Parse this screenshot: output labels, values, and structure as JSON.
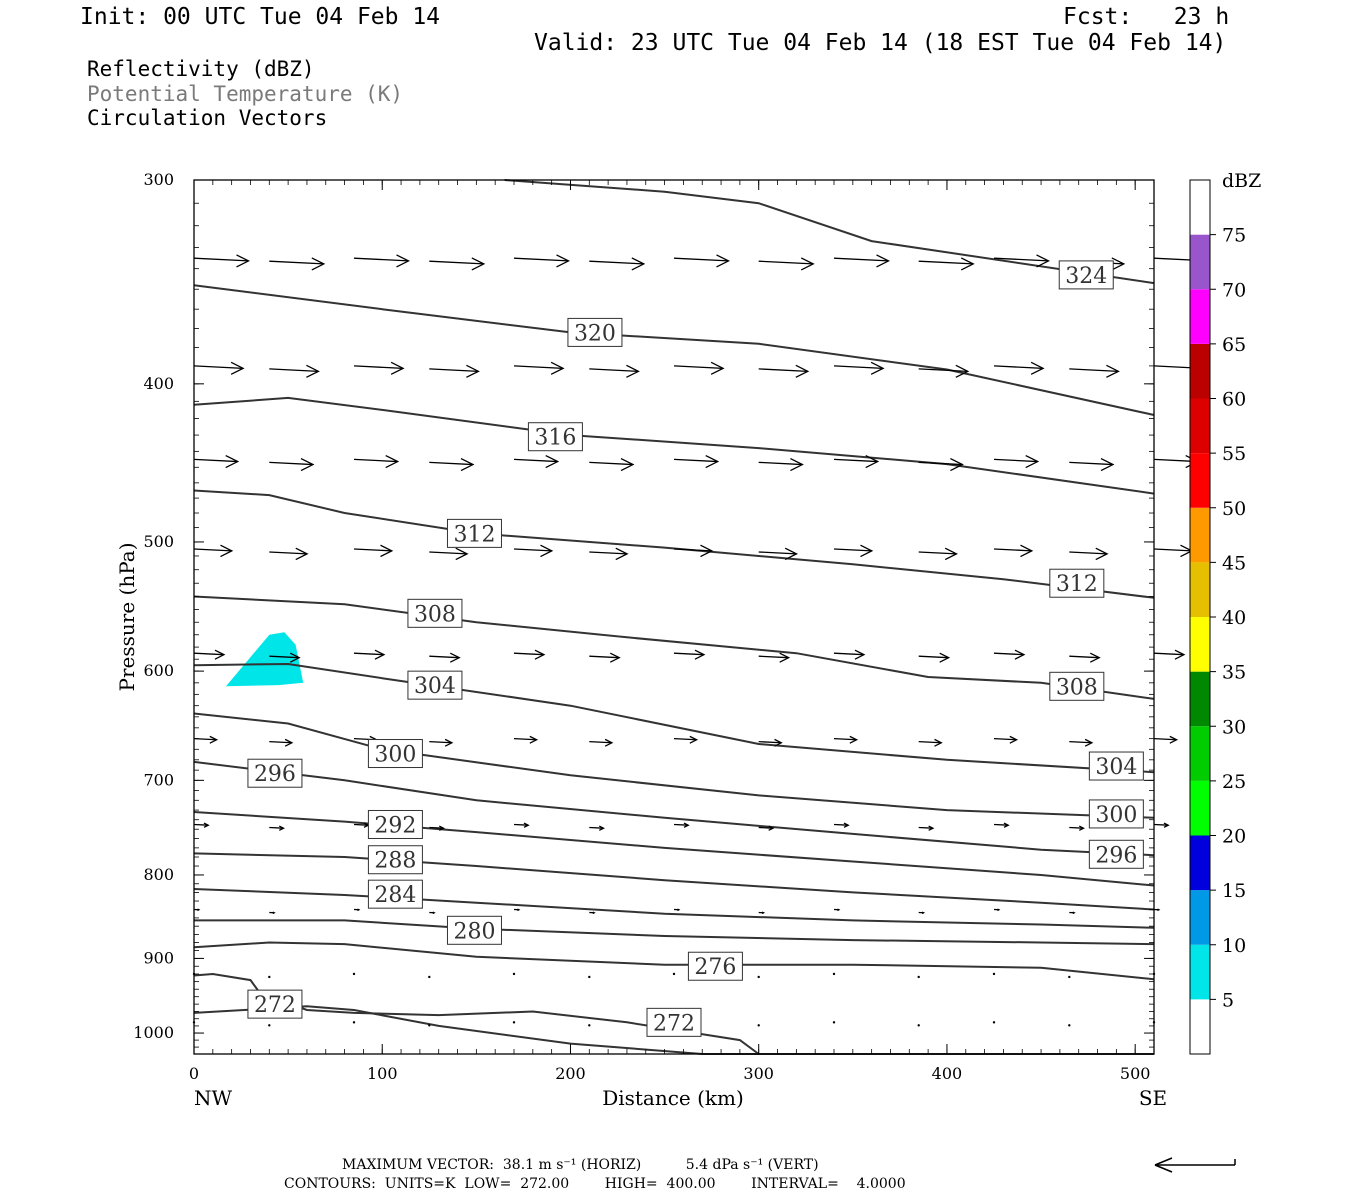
{
  "header": {
    "init": "Init: 00 UTC Tue 04 Feb 14",
    "fcst": "Fcst:   23 h",
    "valid": "Valid: 23 UTC Tue 04 Feb 14 (18 EST Tue 04 Feb 14)"
  },
  "legend": {
    "line1": "Reflectivity (dBZ)",
    "line2": "Potential Temperature (K)",
    "line3": "Circulation Vectors"
  },
  "footer": {
    "line1": "MAXIMUM VECTOR:  38.1 m s⁻¹ (HORIZ)          5.4 dPa s⁻¹ (VERT)",
    "line2": "CONTOURS:  UNITS=K  LOW=  272.00        HIGH=  400.00        INTERVAL=    4.0000"
  },
  "colors": {
    "contour": "#333333",
    "vector": "#000000",
    "reflectivity_5_10": "#00e5e8"
  },
  "chart_data": {
    "type": "cross-section",
    "xlabel": "Distance (km)",
    "ylabel": "Pressure (hPa)",
    "xlim": [
      0,
      510
    ],
    "ylim": [
      1030,
      300
    ],
    "y_scale": "log",
    "x_ticks": [
      "0",
      "100",
      "200",
      "300",
      "400",
      "500"
    ],
    "y_ticks": [
      "300",
      "400",
      "500",
      "600",
      "700",
      "800",
      "900",
      "1000"
    ],
    "x_end_labels": {
      "left": "NW",
      "right": "SE"
    },
    "grid": false,
    "colorbar": {
      "title": "dBZ",
      "levels": [
        "5",
        "10",
        "15",
        "20",
        "25",
        "30",
        "35",
        "40",
        "45",
        "50",
        "55",
        "60",
        "65",
        "70",
        "75"
      ],
      "colors": [
        "#ffffff",
        "#00e5e8",
        "#0099e6",
        "#0000dd",
        "#00ff00",
        "#00cc00",
        "#008800",
        "#ffff00",
        "#e6c000",
        "#ff9900",
        "#ff0000",
        "#dd0000",
        "#bb0000",
        "#ff00ff",
        "#9955cc",
        "#ffffff"
      ]
    },
    "reflectivity_areas": [
      {
        "range_dBZ": "5-10",
        "points": [
          [
            17,
            613
          ],
          [
            40,
            570
          ],
          [
            48,
            568
          ],
          [
            54,
            578
          ],
          [
            58,
            610
          ],
          [
            45,
            612
          ]
        ]
      }
    ],
    "theta_contours": [
      {
        "value": 324,
        "points": [
          [
            165,
            300
          ],
          [
            250,
            305
          ],
          [
            300,
            310
          ],
          [
            360,
            327
          ],
          [
            510,
            347
          ]
        ],
        "labels": [
          [
            474,
            343
          ]
        ]
      },
      {
        "value": 320,
        "points": [
          [
            0,
            348
          ],
          [
            100,
            360
          ],
          [
            200,
            372
          ],
          [
            300,
            378
          ],
          [
            400,
            392
          ],
          [
            510,
            418
          ]
        ],
        "labels": [
          [
            213,
            372
          ]
        ]
      },
      {
        "value": 316,
        "points": [
          [
            0,
            412
          ],
          [
            50,
            408
          ],
          [
            100,
            415
          ],
          [
            200,
            430
          ],
          [
            300,
            438
          ],
          [
            400,
            448
          ],
          [
            510,
            467
          ]
        ],
        "labels": [
          [
            192,
            431
          ]
        ]
      },
      {
        "value": 312,
        "points": [
          [
            0,
            465
          ],
          [
            40,
            468
          ],
          [
            80,
            480
          ],
          [
            150,
            494
          ],
          [
            250,
            504
          ],
          [
            350,
            516
          ],
          [
            430,
            527
          ],
          [
            510,
            541
          ]
        ],
        "labels": [
          [
            149,
            494
          ],
          [
            469,
            530
          ]
        ]
      },
      {
        "value": 308,
        "points": [
          [
            0,
            540
          ],
          [
            80,
            546
          ],
          [
            150,
            560
          ],
          [
            230,
            572
          ],
          [
            320,
            585
          ],
          [
            390,
            605
          ],
          [
            450,
            610
          ],
          [
            510,
            624
          ]
        ],
        "labels": [
          [
            128,
            553
          ],
          [
            469,
            613
          ]
        ]
      },
      {
        "value": 304,
        "points": [
          [
            0,
            595
          ],
          [
            50,
            594
          ],
          [
            100,
            606
          ],
          [
            200,
            630
          ],
          [
            300,
            665
          ],
          [
            400,
            680
          ],
          [
            510,
            692
          ]
        ],
        "labels": [
          [
            128,
            612
          ],
          [
            490,
            686
          ]
        ]
      },
      {
        "value": 300,
        "points": [
          [
            0,
            637
          ],
          [
            50,
            646
          ],
          [
            100,
            670
          ],
          [
            200,
            695
          ],
          [
            300,
            715
          ],
          [
            400,
            730
          ],
          [
            510,
            738
          ]
        ],
        "labels": [
          [
            107,
            674
          ],
          [
            490,
            734
          ]
        ]
      },
      {
        "value": 296,
        "points": [
          [
            0,
            682
          ],
          [
            80,
            700
          ],
          [
            150,
            720
          ],
          [
            250,
            738
          ],
          [
            350,
            755
          ],
          [
            450,
            772
          ],
          [
            510,
            778
          ]
        ],
        "labels": [
          [
            43,
            693
          ],
          [
            490,
            777
          ]
        ]
      },
      {
        "value": 292,
        "points": [
          [
            0,
            732
          ],
          [
            80,
            742
          ],
          [
            150,
            753
          ],
          [
            250,
            770
          ],
          [
            350,
            785
          ],
          [
            450,
            800
          ],
          [
            510,
            812
          ]
        ],
        "labels": [
          [
            107,
            745
          ]
        ]
      },
      {
        "value": 288,
        "points": [
          [
            0,
            776
          ],
          [
            80,
            780
          ],
          [
            150,
            790
          ],
          [
            250,
            806
          ],
          [
            350,
            820
          ],
          [
            450,
            832
          ],
          [
            510,
            840
          ]
        ],
        "labels": [
          [
            107,
            783
          ]
        ]
      },
      {
        "value": 284,
        "points": [
          [
            0,
            816
          ],
          [
            80,
            823
          ],
          [
            150,
            832
          ],
          [
            250,
            845
          ],
          [
            350,
            853
          ],
          [
            450,
            858
          ],
          [
            510,
            862
          ]
        ],
        "labels": [
          [
            107,
            822
          ]
        ]
      },
      {
        "value": 280,
        "points": [
          [
            0,
            853
          ],
          [
            80,
            853
          ],
          [
            150,
            863
          ],
          [
            250,
            872
          ],
          [
            350,
            877
          ],
          [
            450,
            880
          ],
          [
            510,
            882
          ]
        ],
        "labels": [
          [
            149,
            865
          ]
        ]
      },
      {
        "value": 276,
        "points": [
          [
            0,
            886
          ],
          [
            40,
            880
          ],
          [
            80,
            882
          ],
          [
            150,
            898
          ],
          [
            250,
            908
          ],
          [
            350,
            908
          ],
          [
            450,
            912
          ],
          [
            510,
            927
          ]
        ],
        "labels": [
          [
            277,
            910
          ]
        ]
      },
      {
        "value": 272,
        "points": [
          [
            0,
            922
          ],
          [
            10,
            920
          ],
          [
            30,
            928
          ],
          [
            35,
            945
          ],
          [
            60,
            968
          ],
          [
            85,
            972
          ],
          [
            130,
            975
          ],
          [
            180,
            970
          ],
          [
            230,
            985
          ],
          [
            290,
            1010
          ],
          [
            300,
            1030
          ]
        ],
        "labels": [
          [
            43,
            960
          ],
          [
            255,
            985
          ]
        ]
      },
      {
        "value": 272,
        "points": [
          [
            0,
            972
          ],
          [
            60,
            963
          ],
          [
            85,
            968
          ],
          [
            130,
            990
          ],
          [
            200,
            1015
          ],
          [
            270,
            1030
          ],
          [
            510,
            1030
          ]
        ],
        "labels": []
      }
    ],
    "vector_rows_pressure": [
      335,
      390,
      445,
      505,
      585,
      660,
      745,
      840,
      920,
      985
    ],
    "vector_columns_km": [
      0,
      40,
      85,
      125,
      170,
      210,
      255,
      300,
      340,
      385,
      425,
      465,
      510
    ],
    "max_vector": {
      "horiz": "38.1 m s⁻¹",
      "vert": "5.4 dPa s⁻¹"
    },
    "contour_low": 272.0,
    "contour_high": 400.0,
    "contour_interval": 4.0
  }
}
